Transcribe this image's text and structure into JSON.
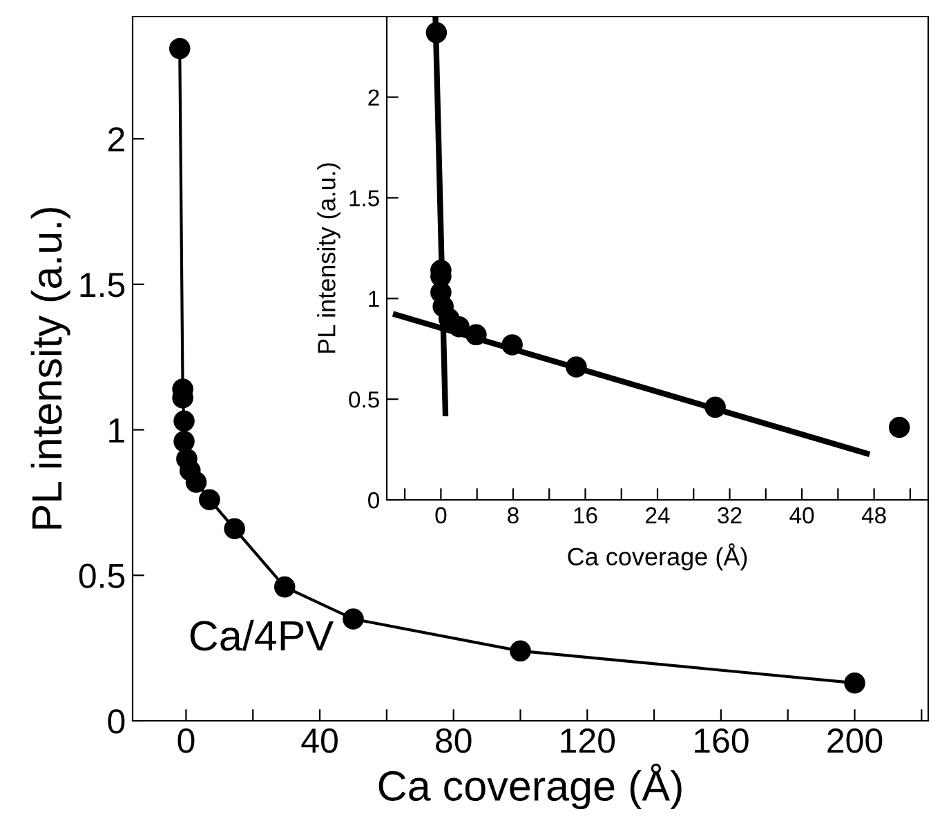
{
  "chart_data": [
    {
      "type": "line",
      "xlabel": "Ca coverage (Å)",
      "ylabel": "PL intensity (a.u.)",
      "annotations": [
        "Ca/4PV"
      ],
      "x": [
        -1.9,
        -1,
        -1,
        -0.6,
        -0.6,
        0.2,
        1.2,
        3,
        7,
        14.5,
        29.5,
        50,
        100,
        200
      ],
      "series": [
        {
          "color": "#000000",
          "values": [
            2.31,
            1.14,
            1.11,
            1.03,
            0.96,
            0.9,
            0.86,
            0.82,
            0.76,
            0.66,
            0.46,
            0.35,
            0.24,
            0.13
          ]
        }
      ],
      "marker": "circle",
      "line_style": "solid",
      "xlim": [
        -16,
        222
      ],
      "ylim": [
        0,
        2.42
      ],
      "xticks": [
        0,
        {
          "value": 20,
          "label": null
        },
        40,
        {
          "value": 60,
          "label": null
        },
        80,
        {
          "value": 100,
          "label": null
        },
        120,
        {
          "value": 140,
          "label": null
        },
        160,
        {
          "value": 180,
          "label": null
        },
        200,
        {
          "value": 220,
          "label": null
        }
      ],
      "yticks": [
        0,
        0.5,
        1,
        1.5,
        2
      ],
      "grid": false,
      "legend": false
    },
    {
      "type": "scatter",
      "xlabel": "Ca coverage (Å)",
      "ylabel": "PL intensity (a.u.)",
      "series": [
        {
          "color": "#000000",
          "x": [
            -0.5,
            0,
            0,
            0,
            0.25,
            0.9,
            2,
            3.9,
            7.9,
            15,
            30.4,
            50.8
          ],
          "values": [
            2.32,
            1.14,
            1.11,
            1.03,
            0.96,
            0.9,
            0.86,
            0.82,
            0.77,
            0.66,
            0.46,
            0.36
          ]
        },
        {
          "type": "line",
          "marker": "none",
          "color": "#000000",
          "x": [
            -0.6,
            0.5
          ],
          "values": [
            2.39,
            0.43
          ]
        },
        {
          "type": "line",
          "marker": "none",
          "color": "#000000",
          "x": [
            -5,
            47.2
          ],
          "values": [
            0.92,
            0.23
          ]
        }
      ],
      "marker": "circle",
      "xlim": [
        -6,
        54
      ],
      "ylim": [
        0,
        2.4
      ],
      "xticks": [
        {
          "value": -4,
          "label": null
        },
        0,
        {
          "value": 4,
          "label": null
        },
        8,
        {
          "value": 12,
          "label": null
        },
        16,
        {
          "value": 20,
          "label": null
        },
        24,
        {
          "value": 28,
          "label": null
        },
        32,
        {
          "value": 36,
          "label": null
        },
        40,
        {
          "value": 44,
          "label": null
        },
        48,
        {
          "value": 52,
          "label": null
        }
      ],
      "yticks": [
        0,
        0.5,
        1,
        1.5,
        2
      ],
      "grid": false,
      "legend": false
    }
  ]
}
